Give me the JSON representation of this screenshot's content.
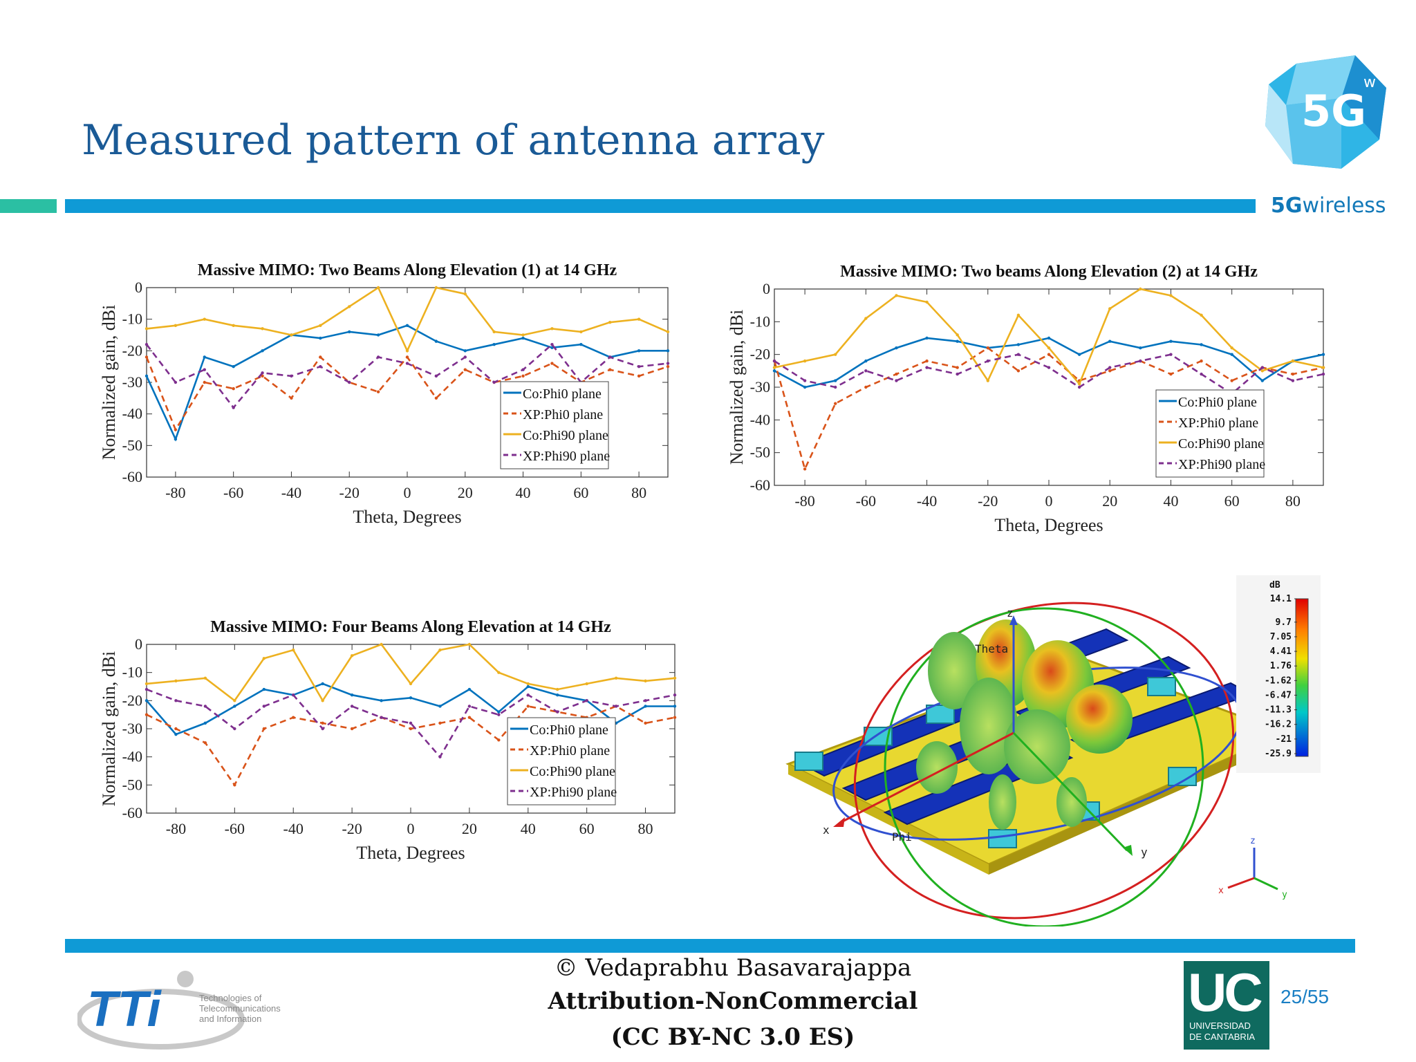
{
  "slide": {
    "title": "Measured pattern of antenna array",
    "brand_text_bold": "5G",
    "brand_text": "wireless",
    "logo_badge": "5G",
    "logo_badge_sup": "w",
    "footer_copyright": "© Vedaprabhu Basavarajappa",
    "footer_license": "Attribution-NonCommercial",
    "footer_license_code": "(CC BY-NC 3.0 ES)",
    "page": "25/55",
    "tti_logo_text": "TTi",
    "tti_caption": [
      "Technologies of",
      "Telecommunications",
      "and Information"
    ],
    "uc_logo": "UC",
    "uc_caption": [
      "UNIVERSIDAD",
      "DE CANTABRIA"
    ],
    "colors": {
      "accent_blue": "#0f9ad6",
      "accent_green": "#2bbfa3",
      "title_blue": "#1a5a96"
    }
  },
  "series_styles": [
    {
      "color": "#0072bd",
      "dash": ""
    },
    {
      "color": "#d95319",
      "dash": "9,6"
    },
    {
      "color": "#edb120",
      "dash": ""
    },
    {
      "color": "#7e2f8e",
      "dash": "9,6"
    }
  ],
  "chart_data": [
    {
      "type": "line",
      "title": "Massive MIMO: Two Beams Along Elevation (1) at 14 GHz",
      "xlabel": "Theta, Degrees",
      "ylabel": "Normalized gain, dBi",
      "xlim": [
        -90,
        90
      ],
      "ylim": [
        -60,
        0
      ],
      "xticks": [
        -80,
        -60,
        -40,
        -20,
        0,
        20,
        40,
        60,
        80
      ],
      "yticks": [
        0,
        -10,
        -20,
        -30,
        -40,
        -50,
        -60
      ],
      "grid": false,
      "legend": "bottom-right",
      "x": [
        -90,
        -80,
        -70,
        -60,
        -50,
        -40,
        -30,
        -20,
        -10,
        0,
        10,
        20,
        30,
        40,
        50,
        60,
        70,
        80,
        90
      ],
      "series": [
        {
          "name": "Co:Phi0 plane",
          "values": [
            -28,
            -48,
            -22,
            -25,
            -20,
            -15,
            -16,
            -14,
            -15,
            -12,
            -17,
            -20,
            -18,
            -16,
            -19,
            -18,
            -22,
            -20,
            -20
          ]
        },
        {
          "name": "XP:Phi0 plane",
          "values": [
            -22,
            -45,
            -30,
            -32,
            -28,
            -35,
            -22,
            -30,
            -33,
            -22,
            -35,
            -26,
            -30,
            -28,
            -24,
            -30,
            -26,
            -28,
            -25
          ]
        },
        {
          "name": "Co:Phi90 plane",
          "values": [
            -13,
            -12,
            -10,
            -12,
            -13,
            -15,
            -12,
            -6,
            0,
            -20,
            0,
            -2,
            -14,
            -15,
            -13,
            -14,
            -11,
            -10,
            -14
          ]
        },
        {
          "name": "XP:Phi90 plane",
          "values": [
            -18,
            -30,
            -26,
            -38,
            -27,
            -28,
            -25,
            -30,
            -22,
            -24,
            -28,
            -22,
            -30,
            -26,
            -18,
            -30,
            -22,
            -25,
            -24
          ]
        }
      ]
    },
    {
      "type": "line",
      "title": "Massive MIMO: Two beams Along Elevation (2) at 14 GHz",
      "xlabel": "Theta, Degrees",
      "ylabel": "Normalized gain, dBi",
      "xlim": [
        -90,
        90
      ],
      "ylim": [
        -60,
        0
      ],
      "xticks": [
        -80,
        -60,
        -40,
        -20,
        0,
        20,
        40,
        60,
        80
      ],
      "yticks": [
        0,
        -10,
        -20,
        -30,
        -40,
        -50,
        -60
      ],
      "grid": false,
      "legend": "bottom-right",
      "x": [
        -90,
        -80,
        -70,
        -60,
        -50,
        -40,
        -30,
        -20,
        -10,
        0,
        10,
        20,
        30,
        40,
        50,
        60,
        70,
        80,
        90
      ],
      "series": [
        {
          "name": "Co:Phi0 plane",
          "values": [
            -25,
            -30,
            -28,
            -22,
            -18,
            -15,
            -16,
            -18,
            -17,
            -15,
            -20,
            -16,
            -18,
            -16,
            -17,
            -20,
            -28,
            -22,
            -20
          ]
        },
        {
          "name": "XP:Phi0 plane",
          "values": [
            -22,
            -55,
            -35,
            -30,
            -26,
            -22,
            -24,
            -18,
            -25,
            -20,
            -28,
            -25,
            -22,
            -26,
            -22,
            -28,
            -24,
            -26,
            -24
          ]
        },
        {
          "name": "Co:Phi90 plane",
          "values": [
            -24,
            -22,
            -20,
            -9,
            -2,
            -4,
            -14,
            -28,
            -8,
            -18,
            -29,
            -6,
            0,
            -2,
            -8,
            -18,
            -25,
            -22,
            -24
          ]
        },
        {
          "name": "XP:Phi90 plane",
          "values": [
            -22,
            -28,
            -30,
            -25,
            -28,
            -24,
            -26,
            -22,
            -20,
            -24,
            -30,
            -24,
            -22,
            -20,
            -26,
            -32,
            -24,
            -28,
            -26
          ]
        }
      ]
    },
    {
      "type": "line",
      "title": "Massive MIMO: Four Beams Along Elevation at 14 GHz",
      "xlabel": "Theta, Degrees",
      "ylabel": "Normalized gain, dBi",
      "xlim": [
        -90,
        90
      ],
      "ylim": [
        -60,
        0
      ],
      "xticks": [
        -80,
        -60,
        -40,
        -20,
        0,
        20,
        40,
        60,
        80
      ],
      "yticks": [
        0,
        -10,
        -20,
        -30,
        -40,
        -50,
        -60
      ],
      "grid": false,
      "legend": "bottom-right",
      "x": [
        -90,
        -80,
        -70,
        -60,
        -50,
        -40,
        -30,
        -20,
        -10,
        0,
        10,
        20,
        30,
        40,
        50,
        60,
        70,
        80,
        90
      ],
      "series": [
        {
          "name": "Co:Phi0 plane",
          "values": [
            -20,
            -32,
            -28,
            -22,
            -16,
            -18,
            -14,
            -18,
            -20,
            -19,
            -22,
            -16,
            -24,
            -15,
            -18,
            -20,
            -28,
            -22,
            -22
          ]
        },
        {
          "name": "XP:Phi0 plane",
          "values": [
            -25,
            -30,
            -35,
            -50,
            -30,
            -26,
            -28,
            -30,
            -26,
            -30,
            -28,
            -26,
            -34,
            -22,
            -24,
            -26,
            -22,
            -28,
            -26
          ]
        },
        {
          "name": "Co:Phi90 plane",
          "values": [
            -14,
            -13,
            -12,
            -20,
            -5,
            -2,
            -20,
            -4,
            0,
            -14,
            -2,
            0,
            -10,
            -14,
            -16,
            -14,
            -12,
            -13,
            -12
          ]
        },
        {
          "name": "XP:Phi90 plane",
          "values": [
            -16,
            -20,
            -22,
            -30,
            -22,
            -18,
            -30,
            -22,
            -26,
            -28,
            -40,
            -22,
            -25,
            -18,
            -24,
            -20,
            -22,
            -20,
            -18
          ]
        }
      ]
    }
  ],
  "radiation_pattern": {
    "axis_labels": {
      "z": "z",
      "x": "x",
      "y": "y",
      "theta": "Theta",
      "phi": "Phi"
    },
    "colorbar_unit": "dB",
    "colorbar_ticks": [
      "14.1",
      "9.7",
      "7.05",
      "4.41",
      "1.76",
      "-1.62",
      "-6.47",
      "-11.3",
      "-16.2",
      "-21",
      "-25.9"
    ]
  }
}
